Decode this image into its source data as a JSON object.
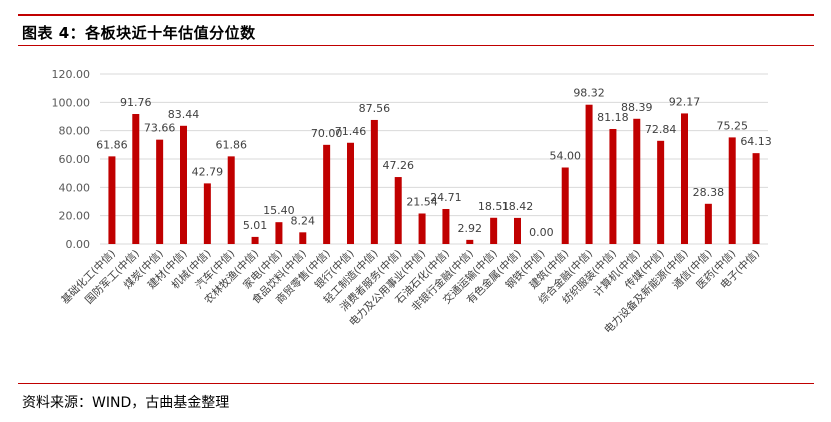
{
  "figure_title": "图表 4：各板块近十年估值分位数",
  "source_note": "资料来源：WIND，古曲基金整理",
  "colors": {
    "bar": "#c00000",
    "rule": "#c00000",
    "grid": "#d9d9d9",
    "axis_text": "#595959"
  },
  "chart_data": {
    "type": "bar",
    "title": "",
    "xlabel": "",
    "ylabel": "",
    "ylim": [
      0,
      120
    ],
    "yticks": [
      "0.00",
      "20.00",
      "40.00",
      "60.00",
      "80.00",
      "100.00",
      "120.00"
    ],
    "grid": true,
    "legend": "none",
    "categories": [
      "基础化工(中信)",
      "国防军工(中信)",
      "煤炭(中信)",
      "建材(中信)",
      "机械(中信)",
      "汽车(中信)",
      "农林牧渔(中信)",
      "家电(中信)",
      "食品饮料(中信)",
      "商贸零售(中信)",
      "银行(中信)",
      "轻工制造(中信)",
      "消费者服务(中信)",
      "电力及公用事业(中信)",
      "石油石化(中信)",
      "非银行金融(中信)",
      "交通运输(中信)",
      "有色金属(中信)",
      "钢铁(中信)",
      "建筑(中信)",
      "综合金融(中信)",
      "纺织服装(中信)",
      "计算机(中信)",
      "传媒(中信)",
      "电力设备及新能源(中信)",
      "通信(中信)",
      "医药(中信)",
      "电子(中信)"
    ],
    "values": [
      61.86,
      91.76,
      73.66,
      83.44,
      42.79,
      61.86,
      5.01,
      15.4,
      8.24,
      70.0,
      71.46,
      87.56,
      47.26,
      21.54,
      24.71,
      2.92,
      18.51,
      18.42,
      0.0,
      54.0,
      98.32,
      81.18,
      88.39,
      72.84,
      92.17,
      28.38,
      75.25,
      64.13
    ],
    "value_labels": [
      "61.86",
      "91.76",
      "73.66",
      "83.44",
      "42.79",
      "61.86",
      "5.01",
      "15.40",
      "8.24",
      "70.00",
      "71.46",
      "87.56",
      "47.26",
      "21.54",
      "24.71",
      "2.92",
      "18.51",
      "18.42",
      "0.00",
      "54.00",
      "98.32",
      "81.18",
      "88.39",
      "72.84",
      "92.17",
      "28.38",
      "75.25",
      "64.13"
    ]
  }
}
